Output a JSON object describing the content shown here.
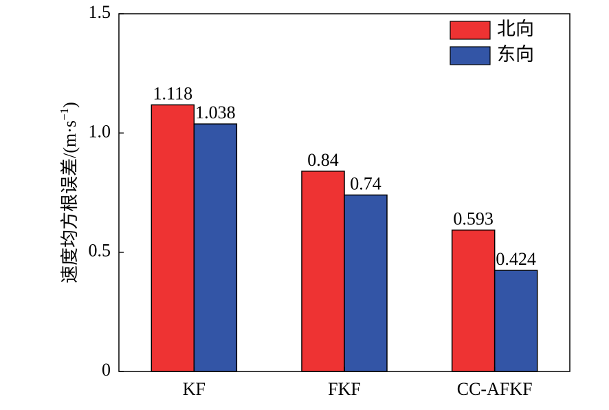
{
  "chart_data": {
    "type": "bar",
    "title": "",
    "xlabel": "",
    "ylabel": "速度均方根误差/(m·s",
    "ylabel_unit_superscript": "−1",
    "ylabel_unit_close": ")",
    "categories": [
      "KF",
      "FKF",
      "CC-AFKF"
    ],
    "series": [
      {
        "name": "北向",
        "values": [
          1.118,
          0.84,
          0.593
        ],
        "labels": [
          "1.118",
          "0.84",
          "0.593"
        ],
        "color": "#ee3333"
      },
      {
        "name": "东向",
        "values": [
          1.038,
          0.74,
          0.424
        ],
        "labels": [
          "1.038",
          "0.74",
          "0.424"
        ],
        "color": "#3355a6"
      }
    ],
    "ylim": [
      0,
      1.5
    ],
    "yticks": [
      0,
      0.5,
      1.0,
      1.5
    ],
    "ytick_labels": [
      "0",
      "0.5",
      "1.0",
      "1.5"
    ],
    "grid": false,
    "legend_position": "top-right"
  }
}
